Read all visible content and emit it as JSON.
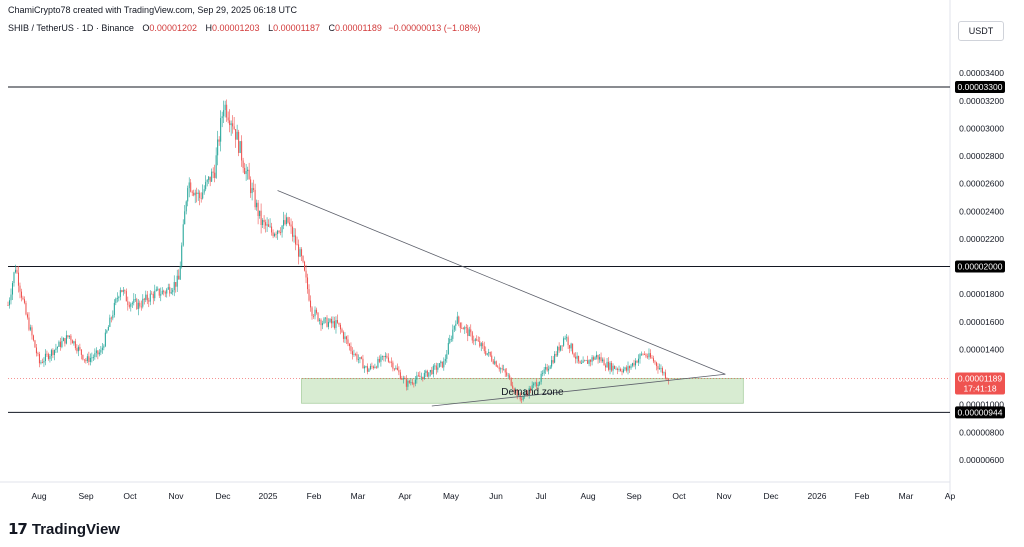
{
  "header": {
    "attribution": "ChamiCrypto78 created with TradingView.com, Sep 29, 2025 06:18 UTC",
    "symbol": "SHIB / TetherUS · 1D · Binance",
    "open_label": "O",
    "open": "0.00001202",
    "high_label": "H",
    "high": "0.00001203",
    "low_label": "L",
    "low": "0.00001187",
    "close_label": "C",
    "close": "0.00001189",
    "change": "−0.00000013 (−1.08%)"
  },
  "currency": "USDT",
  "footer": {
    "logo": "17",
    "brand": "TradingView"
  },
  "colors": {
    "up": "#26a69a",
    "down": "#ef5350",
    "zone_fill": "#d8ecd2",
    "hline": "#131722",
    "trendline": "#5d606b",
    "price_badge": "#ef5350",
    "level_badge": "#000000"
  },
  "chart_data": {
    "type": "candlestick",
    "x_tick_labels": [
      "Aug",
      "Sep",
      "Oct",
      "Nov",
      "Dec",
      "2025",
      "Feb",
      "Mar",
      "Apr",
      "May",
      "Jun",
      "Jul",
      "Aug",
      "Sep",
      "Oct",
      "Nov",
      "Dec",
      "2026",
      "Feb",
      "Mar",
      "Ap"
    ],
    "y_tick_labels": [
      "0.00003400",
      "0.00003200",
      "0.00003000",
      "0.00002800",
      "0.00002600",
      "0.00002400",
      "0.00002200",
      "0.00001800",
      "0.00001600",
      "0.00001400",
      "0.00001000",
      "0.00000800",
      "0.00000600"
    ],
    "y_tick_values": [
      3.4e-05,
      3.2e-05,
      3e-05,
      2.8e-05,
      2.6e-05,
      2.4e-05,
      2.2e-05,
      1.8e-05,
      1.6e-05,
      1.4e-05,
      1e-05,
      8e-06,
      6e-06
    ],
    "ylim": [
      4.4e-06,
      3.64e-05
    ],
    "xlim": [
      "2024-07-15",
      "2026-04-05"
    ],
    "horizontal_levels": [
      {
        "label": "0.00003300",
        "value": 3.3e-05
      },
      {
        "label": "0.00002000",
        "value": 2e-05
      },
      {
        "label": "0.00000944",
        "value": 9.44e-06
      }
    ],
    "current_price": {
      "label": "0.00001189",
      "countdown": "17:41:18",
      "value": 1.189e-05
    },
    "demand_zone": {
      "label": "Demand zone",
      "x_from": "2025-01-27",
      "x_to": "2025-11-18",
      "y_from": 1.01e-05,
      "y_to": 1.19e-05
    },
    "trendlines": [
      {
        "from": {
          "x": "2025-01-11",
          "y": 2.55e-05
        },
        "to": {
          "x": "2025-11-06",
          "y": 1.22e-05
        }
      },
      {
        "from": {
          "x": "2025-04-24",
          "y": 9.9e-06
        },
        "to": {
          "x": "2025-11-06",
          "y": 1.22e-05
        }
      }
    ],
    "price_path": [
      [
        "2024-07-15",
        1.72e-05
      ],
      [
        "2024-07-20",
        2e-05
      ],
      [
        "2024-07-27",
        1.65e-05
      ],
      [
        "2024-08-05",
        1.3e-05
      ],
      [
        "2024-08-15",
        1.4e-05
      ],
      [
        "2024-08-25",
        1.5e-05
      ],
      [
        "2024-09-05",
        1.32e-05
      ],
      [
        "2024-09-15",
        1.38e-05
      ],
      [
        "2024-09-28",
        1.85e-05
      ],
      [
        "2024-10-03",
        1.75e-05
      ],
      [
        "2024-10-10",
        1.72e-05
      ],
      [
        "2024-10-20",
        1.8e-05
      ],
      [
        "2024-10-28",
        1.82e-05
      ],
      [
        "2024-11-06",
        1.9e-05
      ],
      [
        "2024-11-12",
        2.62e-05
      ],
      [
        "2024-11-20",
        2.5e-05
      ],
      [
        "2024-11-30",
        2.7e-05
      ],
      [
        "2024-12-06",
        3.18e-05
      ],
      [
        "2024-12-12",
        3.05e-05
      ],
      [
        "2024-12-20",
        2.72e-05
      ],
      [
        "2024-12-31",
        2.32e-05
      ],
      [
        "2025-01-07",
        2.25e-05
      ],
      [
        "2025-01-18",
        2.32e-05
      ],
      [
        "2025-01-27",
        2.05e-05
      ],
      [
        "2025-02-03",
        1.68e-05
      ],
      [
        "2025-02-10",
        1.6e-05
      ],
      [
        "2025-02-20",
        1.58e-05
      ],
      [
        "2025-03-01",
        1.4e-05
      ],
      [
        "2025-03-12",
        1.25e-05
      ],
      [
        "2025-03-25",
        1.35e-05
      ],
      [
        "2025-04-07",
        1.15e-05
      ],
      [
        "2025-04-20",
        1.22e-05
      ],
      [
        "2025-05-02",
        1.3e-05
      ],
      [
        "2025-05-10",
        1.62e-05
      ],
      [
        "2025-05-20",
        1.5e-05
      ],
      [
        "2025-06-02",
        1.35e-05
      ],
      [
        "2025-06-14",
        1.2e-05
      ],
      [
        "2025-06-22",
        1.04e-05
      ],
      [
        "2025-07-05",
        1.18e-05
      ],
      [
        "2025-07-15",
        1.35e-05
      ],
      [
        "2025-07-22",
        1.5e-05
      ],
      [
        "2025-08-01",
        1.28e-05
      ],
      [
        "2025-08-12",
        1.35e-05
      ],
      [
        "2025-08-20",
        1.28e-05
      ],
      [
        "2025-09-01",
        1.25e-05
      ],
      [
        "2025-09-12",
        1.37e-05
      ],
      [
        "2025-09-18",
        1.33e-05
      ],
      [
        "2025-09-29",
        1.19e-05
      ]
    ]
  }
}
